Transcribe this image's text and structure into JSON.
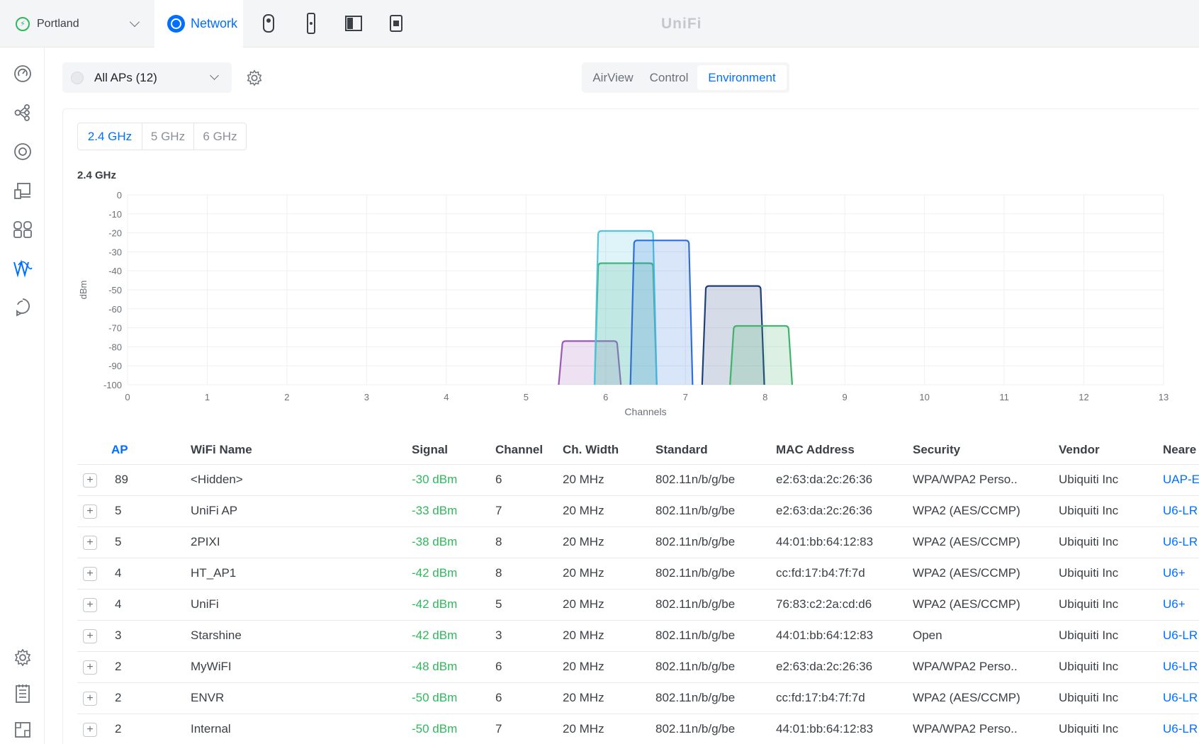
{
  "topbar": {
    "site": "Portland",
    "active_app": "Network",
    "brand": "UniFi",
    "app_icons": [
      "protect-camera-icon",
      "access-reader-icon",
      "door-panel-icon",
      "connect-device-icon"
    ]
  },
  "sidebar": {
    "items": [
      "dashboard-icon",
      "topology-icon",
      "devices-icon",
      "client-devices-icon",
      "apps-icon",
      "wifiman-icon",
      "insights-icon"
    ],
    "bottom_items": [
      "settings-icon",
      "logs-icon",
      "system-log-icon"
    ],
    "active": "wifiman-icon"
  },
  "ap_select": {
    "label": "All APs (12)"
  },
  "view_tabs": [
    "AirView",
    "Control",
    "Environment"
  ],
  "active_view": "Environment",
  "band_tabs": [
    "2.4 GHz",
    "5 GHz",
    "6 GHz"
  ],
  "active_band": "2.4 GHz",
  "chart_title": "2.4 GHz",
  "chart_data": {
    "type": "area",
    "title": "2.4 GHz",
    "xlabel": "Channels",
    "ylabel": "dBm",
    "xlim": [
      0,
      13
    ],
    "ylim": [
      -100,
      0
    ],
    "x_ticks": [
      "0",
      "1",
      "2",
      "3",
      "4",
      "5",
      "6",
      "7",
      "8",
      "9",
      "10",
      "11",
      "12",
      "13"
    ],
    "y_ticks": [
      "0",
      "-10",
      "-20",
      "-30",
      "-40",
      "-50",
      "-60",
      "-70",
      "-80",
      "-90",
      "-100"
    ],
    "grid": true,
    "series": [
      {
        "channel": 5.8,
        "signal": -77,
        "color": "#9b59b6"
      },
      {
        "channel": 6.25,
        "signal": -36,
        "color": "#3fb36a"
      },
      {
        "channel": 6.25,
        "signal": -19,
        "color": "#4ec3e0"
      },
      {
        "channel": 6.7,
        "signal": -24,
        "color": "#2f6fd6"
      },
      {
        "channel": 7.6,
        "signal": -48,
        "color": "#1d3f7a"
      },
      {
        "channel": 7.95,
        "signal": -69,
        "color": "#3fb36a"
      }
    ]
  },
  "table": {
    "columns": [
      "AP",
      "WiFi Name",
      "Signal",
      "Channel",
      "Ch. Width",
      "Standard",
      "MAC Address",
      "Security",
      "Vendor",
      "Neare"
    ],
    "rows": [
      [
        "89",
        "<Hidden>",
        "-30 dBm",
        "6",
        "20 MHz",
        "802.11n/b/g/be",
        "e2:63:da:2c:26:36",
        "WPA/WPA2 Perso..",
        "Ubiquiti Inc",
        "UAP-E"
      ],
      [
        "5",
        "UniFi AP",
        "-33 dBm",
        "7",
        "20 MHz",
        "802.11n/b/g/be",
        "e2:63:da:2c:26:36",
        "WPA2 (AES/CCMP)",
        "Ubiquiti Inc",
        "U6-LR"
      ],
      [
        "5",
        "2PIXI",
        "-38 dBm",
        "8",
        "20 MHz",
        "802.11n/b/g/be",
        "44:01:bb:64:12:83",
        "WPA2 (AES/CCMP)",
        "Ubiquiti Inc",
        "U6-LR"
      ],
      [
        "4",
        "HT_AP1",
        "-42 dBm",
        "8",
        "20 MHz",
        "802.11n/b/g/be",
        "cc:fd:17:b4:7f:7d",
        "WPA2 (AES/CCMP)",
        "Ubiquiti Inc",
        "U6+"
      ],
      [
        "4",
        "UniFi",
        "-42 dBm",
        "5",
        "20 MHz",
        "802.11n/b/g/be",
        "76:83:c2:2a:cd:d6",
        "WPA2 (AES/CCMP)",
        "Ubiquiti Inc",
        "U6+"
      ],
      [
        "3",
        "Starshine",
        "-42 dBm",
        "3",
        "20 MHz",
        "802.11n/b/g/be",
        "44:01:bb:64:12:83",
        "Open",
        "Ubiquiti Inc",
        "U6-LR"
      ],
      [
        "2",
        "MyWiFI",
        "-48 dBm",
        "6",
        "20 MHz",
        "802.11n/b/g/be",
        "e2:63:da:2c:26:36",
        "WPA/WPA2 Perso..",
        "Ubiquiti Inc",
        "U6-LR"
      ],
      [
        "2",
        "ENVR",
        "-50 dBm",
        "6",
        "20 MHz",
        "802.11n/b/g/be",
        "cc:fd:17:b4:7f:7d",
        "WPA2 (AES/CCMP)",
        "Ubiquiti Inc",
        "U6-LR"
      ],
      [
        "2",
        "Internal",
        "-50 dBm",
        "7",
        "20 MHz",
        "802.11n/b/g/be",
        "44:01:bb:64:12:83",
        "WPA/WPA2 Perso..",
        "Ubiquiti Inc",
        "U6-LR"
      ]
    ]
  }
}
